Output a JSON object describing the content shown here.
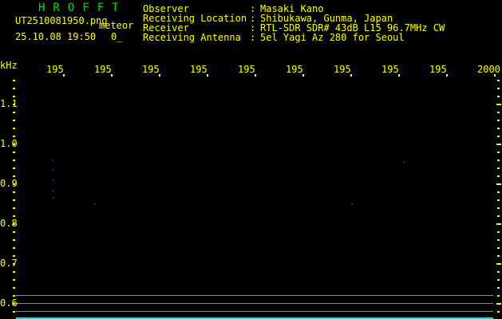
{
  "app_title": "HROFFT",
  "file_name": "UT2510081950.png",
  "mode": "meteor",
  "datetime": "25.10.08 19:50",
  "count": "0_",
  "info": [
    {
      "label": "Observer",
      "value": "Masaki Kano"
    },
    {
      "label": "Receiving Location",
      "value": "Shibukawa, Gunma, Japan"
    },
    {
      "label": "Receiver",
      "value": "RTL-SDR SDR# 43dB L15 96.7MHz CW"
    },
    {
      "label": "Receiving Antenna",
      "value": "5el Yagi Az 280 for Seoul"
    }
  ],
  "y_unit": "kHz",
  "y_labels": [
    "1.1",
    "1.0",
    "0.9",
    "0.8",
    "0.7",
    "0.6"
  ],
  "x_labels": [
    "195",
    "195",
    "195",
    "195",
    "195",
    "195",
    "195",
    "195",
    "195",
    "2000"
  ],
  "colors": {
    "text": "#ffff00",
    "title": "#00e000",
    "grid": "#888888",
    "baseline": "#00e0e0"
  }
}
